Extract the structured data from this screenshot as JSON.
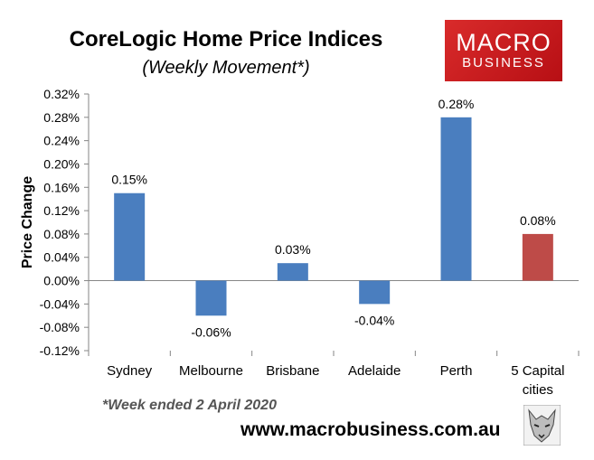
{
  "title": "CoreLogic Home Price Indices",
  "subtitle": "(Weekly Movement*)",
  "logo": {
    "line1": "MACRO",
    "line2": "BUSINESS",
    "color": "#d0191e"
  },
  "footnote": "*Week ended 2 April 2020",
  "url": "www.macrobusiness.com.au",
  "chart_data": {
    "type": "bar",
    "categories": [
      "Sydney",
      "Melbourne",
      "Brisbane",
      "Adelaide",
      "Perth",
      "5 Capital cities"
    ],
    "values": [
      0.15,
      -0.06,
      0.03,
      -0.04,
      0.28,
      0.08
    ],
    "data_labels": [
      "0.15%",
      "-0.06%",
      "0.03%",
      "-0.04%",
      "0.28%",
      "0.08%"
    ],
    "colors": [
      "#4a7ebf",
      "#4a7ebf",
      "#4a7ebf",
      "#4a7ebf",
      "#4a7ebf",
      "#be4b48"
    ],
    "ylabel": "Price Change",
    "ylim": [
      -0.12,
      0.32
    ],
    "yticks": [
      "0.32%",
      "0.28%",
      "0.24%",
      "0.20%",
      "0.16%",
      "0.12%",
      "0.08%",
      "0.04%",
      "0.00%",
      "-0.04%",
      "-0.08%",
      "-0.12%"
    ],
    "grid": false,
    "legend": "none"
  }
}
